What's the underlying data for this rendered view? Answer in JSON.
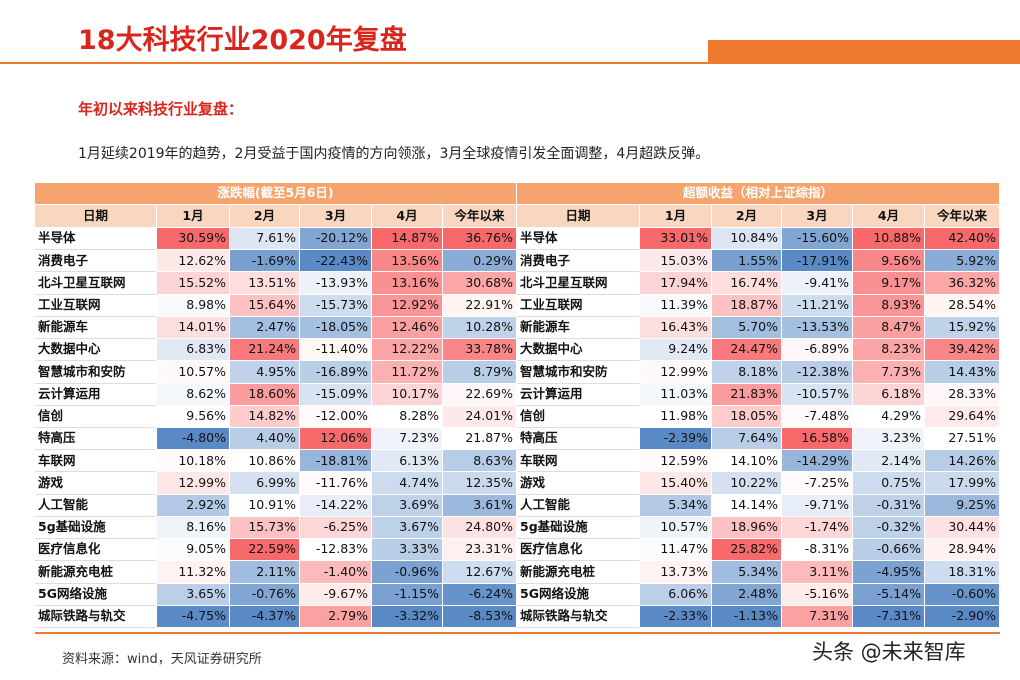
{
  "header": {
    "title": "18大科技行业2020年复盘",
    "subtitle": "年初以来科技行业复盘：",
    "text": "1月延续2019年的趋势，2月受益于国内疫情的方向领涨，3月全球疫情引发全面调整，4月超跌反弹。"
  },
  "table": {
    "groups": [
      "涨跌幅(截至5月6日)",
      "超额收益（相对上证综指）"
    ],
    "headers": [
      "日期",
      "1月",
      "2月",
      "3月",
      "4月",
      "今年以来",
      "日期",
      "1月",
      "2月",
      "3月",
      "4月",
      "今年以来"
    ],
    "rows": [
      [
        "半导体",
        "30.59%",
        "7.61%",
        "-20.12%",
        "14.87%",
        "36.76%",
        "半导体",
        "33.01%",
        "10.84%",
        "-15.60%",
        "10.88%",
        "42.40%"
      ],
      [
        "消费电子",
        "12.62%",
        "-1.69%",
        "-22.43%",
        "13.56%",
        "0.29%",
        "消费电子",
        "15.03%",
        "1.55%",
        "-17.91%",
        "9.56%",
        "5.92%"
      ],
      [
        "北斗卫星互联网",
        "15.52%",
        "13.51%",
        "-13.93%",
        "13.16%",
        "30.68%",
        "北斗卫星互联网",
        "17.94%",
        "16.74%",
        "-9.41%",
        "9.17%",
        "36.32%"
      ],
      [
        "工业互联网",
        "8.98%",
        "15.64%",
        "-15.73%",
        "12.92%",
        "22.91%",
        "工业互联网",
        "11.39%",
        "18.87%",
        "-11.21%",
        "8.93%",
        "28.54%"
      ],
      [
        "新能源车",
        "14.01%",
        "2.47%",
        "-18.05%",
        "12.46%",
        "10.28%",
        "新能源车",
        "16.43%",
        "5.70%",
        "-13.53%",
        "8.47%",
        "15.92%"
      ],
      [
        "大数据中心",
        "6.83%",
        "21.24%",
        "-11.40%",
        "12.22%",
        "33.78%",
        "大数据中心",
        "9.24%",
        "24.47%",
        "-6.89%",
        "8.23%",
        "39.42%"
      ],
      [
        "智慧城市和安防",
        "10.57%",
        "4.95%",
        "-16.89%",
        "11.72%",
        "8.79%",
        "智慧城市和安防",
        "12.99%",
        "8.18%",
        "-12.38%",
        "7.73%",
        "14.43%"
      ],
      [
        "云计算运用",
        "8.62%",
        "18.60%",
        "-15.09%",
        "10.17%",
        "22.69%",
        "云计算运用",
        "11.03%",
        "21.83%",
        "-10.57%",
        "6.18%",
        "28.33%"
      ],
      [
        "信创",
        "9.56%",
        "14.82%",
        "-12.00%",
        "8.28%",
        "24.01%",
        "信创",
        "11.98%",
        "18.05%",
        "-7.48%",
        "4.29%",
        "29.64%"
      ],
      [
        "特高压",
        "-4.80%",
        "4.40%",
        "12.06%",
        "7.23%",
        "21.87%",
        "特高压",
        "-2.39%",
        "7.64%",
        "16.58%",
        "3.23%",
        "27.51%"
      ],
      [
        "车联网",
        "10.18%",
        "10.86%",
        "-18.81%",
        "6.13%",
        "8.63%",
        "车联网",
        "12.59%",
        "14.10%",
        "-14.29%",
        "2.14%",
        "14.26%"
      ],
      [
        "游戏",
        "12.99%",
        "6.99%",
        "-11.76%",
        "4.74%",
        "12.35%",
        "游戏",
        "15.40%",
        "10.22%",
        "-7.25%",
        "0.75%",
        "17.99%"
      ],
      [
        "人工智能",
        "2.92%",
        "10.91%",
        "-14.22%",
        "3.69%",
        "3.61%",
        "人工智能",
        "5.34%",
        "14.14%",
        "-9.71%",
        "-0.31%",
        "9.25%"
      ],
      [
        "5g基础设施",
        "8.16%",
        "15.73%",
        "-6.25%",
        "3.67%",
        "24.80%",
        "5g基础设施",
        "10.57%",
        "18.96%",
        "-1.74%",
        "-0.32%",
        "30.44%"
      ],
      [
        "医疗信息化",
        "9.05%",
        "22.59%",
        "-12.83%",
        "3.33%",
        "23.31%",
        "医疗信息化",
        "11.47%",
        "25.82%",
        "-8.31%",
        "-0.66%",
        "28.94%"
      ],
      [
        "新能源充电桩",
        "11.32%",
        "2.11%",
        "-1.40%",
        "-0.96%",
        "12.67%",
        "新能源充电桩",
        "13.73%",
        "5.34%",
        "3.11%",
        "-4.95%",
        "18.31%"
      ],
      [
        "5G网络设施",
        "3.65%",
        "-0.76%",
        "-9.67%",
        "-1.15%",
        "-6.24%",
        "5G网络设施",
        "6.06%",
        "2.48%",
        "-5.16%",
        "-5.14%",
        "-0.60%"
      ],
      [
        "城际铁路与轨交",
        "-4.75%",
        "-4.37%",
        "2.79%",
        "-3.32%",
        "-8.53%",
        "城际铁路与轨交",
        "-2.33%",
        "-1.13%",
        "7.31%",
        "-7.31%",
        "-2.90%"
      ]
    ]
  },
  "footer": {
    "source": "资料来源：wind，天风证券研究所",
    "watermark": "头条 @未来智库"
  }
}
